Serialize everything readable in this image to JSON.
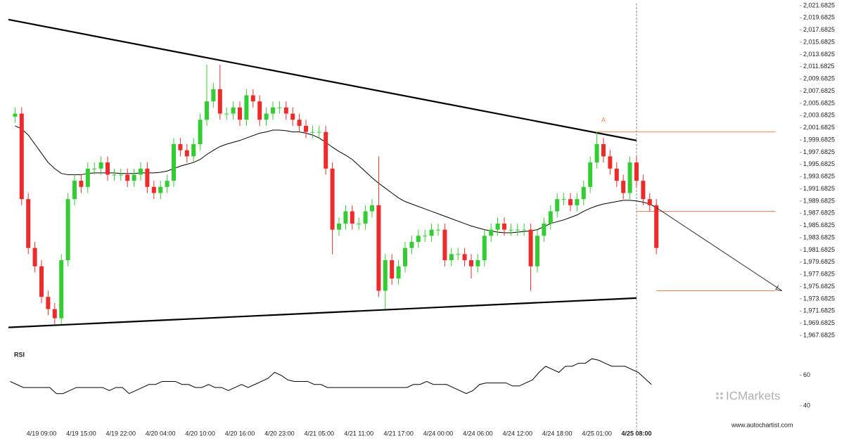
{
  "chart_data": [
    {
      "type": "candlestick",
      "categories": [
        null,
        null,
        null,
        null,
        "4/19 09:00",
        null,
        null,
        null,
        null,
        null,
        "4/19 15:00",
        null,
        null,
        null,
        null,
        null,
        "4/19 22:00",
        null,
        null,
        null,
        null,
        null,
        "4/20 04:00",
        null,
        null,
        null,
        null,
        null,
        "4/20 10:00",
        null,
        null,
        null,
        null,
        null,
        "4/20 16:00",
        null,
        null,
        null,
        null,
        null,
        "4/20 23:00",
        null,
        null,
        null,
        null,
        null,
        "4/21 05:00",
        null,
        null,
        null,
        null,
        null,
        "4/21 11:00",
        null,
        null,
        null,
        null,
        null,
        "4/21 17:00",
        null,
        null,
        null,
        null,
        null,
        "4/24 00:00",
        null,
        null,
        null,
        null,
        null,
        "4/24 06:00",
        null,
        null,
        null,
        null,
        null,
        "4/24 12:00",
        null,
        null,
        null,
        null,
        null,
        "4/24 18:00",
        null,
        null,
        null,
        null,
        null,
        "4/25 01:00",
        null,
        null,
        null,
        null,
        null,
        "4/25 08:00",
        null,
        null,
        null
      ],
      "open": [
        2003.5,
        2004,
        1990,
        1982,
        1979,
        1974,
        1972,
        1970.5,
        1980,
        1990,
        1993,
        1992,
        1995,
        1995,
        1996,
        1994,
        1994,
        1994,
        1993,
        1994,
        1995,
        1992,
        1991,
        1992,
        1993,
        1999,
        1998,
        1997,
        1999,
        2003,
        2006,
        2008,
        2004,
        2004,
        2005,
        2003,
        2007,
        2006,
        2003,
        2004,
        2005,
        2005,
        2004,
        2003,
        2002,
        2001,
        2001,
        2001,
        1995,
        1985,
        1986,
        1988,
        1986,
        1986,
        1988,
        1989,
        1975,
        1980,
        1977,
        1979,
        1982,
        1983,
        1984,
        1984,
        1985,
        1985,
        1980,
        1981,
        1981,
        1980,
        1979,
        1980,
        1984,
        1985,
        1986,
        1985,
        1985,
        1985,
        1985,
        1979,
        1984,
        1986,
        1988,
        1990,
        1990,
        1989,
        1990,
        1992,
        1996,
        1999,
        1997,
        1995,
        1993,
        1991,
        1996,
        1993,
        1990,
        1989
      ],
      "high": [
        2005,
        2005,
        1991,
        1983,
        1980,
        1975,
        1973,
        1981,
        1991,
        1994,
        1994,
        1996,
        1996,
        1997,
        1997,
        1995,
        1995,
        1995,
        1995,
        1996,
        1996,
        1993,
        1993,
        1994,
        2000,
        2000,
        1999,
        2000,
        2004,
        2012,
        2009,
        2012,
        2005,
        2006,
        2006,
        2008,
        2008,
        2007,
        2005,
        2006,
        2006,
        2006,
        2005,
        2004,
        2003,
        2002,
        2002,
        2002,
        1996,
        1987,
        1989,
        1989,
        1987,
        1989,
        1990,
        1997,
        1981,
        1981,
        1980,
        1983,
        1984,
        1985,
        1985,
        1986,
        1986,
        1986,
        1982,
        1982,
        1982,
        1981,
        1981,
        1985,
        1986,
        1987,
        1987,
        1986,
        1986,
        1986,
        1986,
        1985,
        1987,
        1989,
        1991,
        1991,
        1991,
        1991,
        1993,
        1997,
        2001,
        2000,
        1998,
        1996,
        1994,
        1997,
        1997,
        1994,
        1991,
        1990
      ],
      "low": [
        2002.5,
        1989,
        1981,
        1978,
        1973,
        1971,
        1969.5,
        1969.5,
        1979,
        1989,
        1991,
        1991,
        1994,
        1994,
        1993,
        1993,
        1993,
        1992,
        1992,
        1993,
        1991,
        1990,
        1990,
        1991,
        1992,
        1997,
        1996,
        1996,
        1998,
        2002,
        2005,
        2003,
        2003,
        2003,
        2002,
        2002,
        2005,
        2002,
        2002,
        2003,
        2004,
        2003,
        2002,
        2001,
        2000,
        2000,
        2000,
        1994,
        1981,
        1984,
        1985,
        1985,
        1985,
        1985,
        1987,
        1974,
        1972,
        1976,
        1976,
        1978,
        1981,
        1982,
        1983,
        1983,
        1984,
        1979,
        1979,
        1980,
        1979,
        1977,
        1978,
        1979,
        1983,
        1984,
        1984,
        1984,
        1984,
        1984,
        1975,
        1978,
        1983,
        1985,
        1987,
        1989,
        1988,
        1988,
        1989,
        1991,
        1995,
        1996,
        1994,
        1992,
        1990,
        1990,
        1992,
        1989,
        1988,
        1981
      ],
      "close": [
        2004,
        1990,
        1982,
        1979,
        1974,
        1972,
        1970.5,
        1980,
        1990,
        1993,
        1992,
        1995,
        1995,
        1996,
        1994,
        1994,
        1994,
        1993,
        1994,
        1995,
        1992,
        1991,
        1992,
        1993,
        1999,
        1998,
        1997,
        1999,
        2003,
        2006,
        2008,
        2004,
        2004,
        2005,
        2003,
        2007,
        2006,
        2003,
        2004,
        2005,
        2005,
        2004,
        2003,
        2002,
        2001,
        2001,
        2001,
        1995,
        1985,
        1986,
        1988,
        1986,
        1986,
        1988,
        1989,
        1975,
        1980,
        1977,
        1979,
        1982,
        1983,
        1984,
        1984,
        1985,
        1985,
        1980,
        1981,
        1981,
        1980,
        1979,
        1980,
        1984,
        1985,
        1986,
        1985,
        1985,
        1985,
        1985,
        1979,
        1984,
        1986,
        1988,
        1990,
        1990,
        1989,
        1990,
        1992,
        1996,
        1999,
        1997,
        1995,
        1993,
        1991,
        1996,
        1993,
        1990,
        1989,
        1982
      ],
      "up_color": "#33cc33",
      "down_color": "#ee2b2b",
      "moving_average": {
        "color": "#000000",
        "values": [
          2002,
          2001.5,
          2000.5,
          1999,
          1997.5,
          1996,
          1995,
          1994.2,
          1994,
          1994,
          1994,
          1994.2,
          1994.3,
          1994.3,
          1994.3,
          1994.3,
          1994.2,
          1994.2,
          1994.2,
          1994.3,
          1994.3,
          1994.3,
          1994.4,
          1994.6,
          1995,
          1995.4,
          1995.7,
          1996,
          1996.5,
          1997.3,
          1998,
          1998.6,
          1999,
          1999.3,
          1999.6,
          2000,
          2000.4,
          2000.8,
          2001,
          2001.3,
          2001.3,
          2001.2,
          2001,
          2001,
          2000.8,
          2000.5,
          2000,
          1999.3,
          1998.5,
          1997.8,
          1997.2,
          1996.5,
          1995.5,
          1994.5,
          1993.5,
          1992.6,
          1991.8,
          1991,
          1990.2,
          1989.6,
          1989.2,
          1988.8,
          1988.4,
          1988,
          1987.6,
          1987.2,
          1986.8,
          1986.4,
          1986,
          1985.6,
          1985.3,
          1985,
          1984.8,
          1984.6,
          1984.5,
          1984.5,
          1984.6,
          1984.7,
          1984.8,
          1985,
          1985.5,
          1986,
          1986.3,
          1986.6,
          1987,
          1987.4,
          1988,
          1988.5,
          1988.9,
          1989.2,
          1989.4,
          1989.6,
          1989.8,
          1989.8,
          1989.7,
          1989.5,
          1989.2,
          1988.6
        ]
      },
      "ylim": [
        1966.19,
        2022.6
      ],
      "yticks": [
        {
          "value": 2021.6825,
          "label": "2,021.6825"
        },
        {
          "value": 2019.6825,
          "label": "2,019.6825"
        },
        {
          "value": 2017.6825,
          "label": "2,017.6825"
        },
        {
          "value": 2015.6825,
          "label": "2,015.6825"
        },
        {
          "value": 2013.6825,
          "label": "2,013.6825"
        },
        {
          "value": 2011.6825,
          "label": "2,011.6825"
        },
        {
          "value": 2009.6825,
          "label": "2,009.6825"
        },
        {
          "value": 2007.6825,
          "label": "2,007.6825"
        },
        {
          "value": 2005.6825,
          "label": "2,005.6825"
        },
        {
          "value": 2003.6825,
          "label": "2,003.6825"
        },
        {
          "value": 2001.6825,
          "label": "2,001.6825"
        },
        {
          "value": 1999.6825,
          "label": "1,999.6825"
        },
        {
          "value": 1997.6825,
          "label": "1,997.6825"
        },
        {
          "value": 1995.6825,
          "label": "1,995.6825"
        },
        {
          "value": 1993.6825,
          "label": "1,993.6825"
        },
        {
          "value": 1991.6825,
          "label": "1,991.6825"
        },
        {
          "value": 1989.6825,
          "label": "1,989.6825"
        },
        {
          "value": 1987.6825,
          "label": "1,987.6825"
        },
        {
          "value": 1985.6825,
          "label": "1,985.6825"
        },
        {
          "value": 1983.6825,
          "label": "1,983.6825"
        },
        {
          "value": 1981.6825,
          "label": "1,981.6825"
        },
        {
          "value": 1979.6825,
          "label": "1,979.6825"
        },
        {
          "value": 1977.6825,
          "label": "1,977.6825"
        },
        {
          "value": 1975.6825,
          "label": "1,975.6825"
        },
        {
          "value": 1973.6825,
          "label": "1,973.6825"
        },
        {
          "value": 1971.6825,
          "label": "1,971.6825"
        },
        {
          "value": 1969.6825,
          "label": "1,969.6825"
        },
        {
          "value": 1967.6825,
          "label": "1,967.6825"
        }
      ],
      "current_index": 94,
      "trendlines": [
        {
          "start_index": -1,
          "start_value": 2019.4,
          "end_index": 94,
          "end_value": 1999.6,
          "color": "#000000"
        },
        {
          "start_index": -1,
          "start_value": 1969.0,
          "end_index": 94,
          "end_value": 1973.8,
          "color": "#000000"
        }
      ],
      "levels": [
        {
          "value": 2001.0,
          "start_index": 88,
          "end_index": 115,
          "color": "#e8834a"
        },
        {
          "value": 1988.0,
          "start_index": 94,
          "end_index": 115,
          "color": "#e8834a"
        },
        {
          "value": 1975.0,
          "start_index": 97,
          "end_index": 115,
          "color": "#e8834a"
        }
      ],
      "arrow": {
        "start_index": 97,
        "start_value": 1988.6,
        "end_index": 116,
        "end_value": 1975.0,
        "color": "#333333"
      },
      "annotation": {
        "label": "A",
        "index": 89,
        "value": 2002.2,
        "color": "#e8834a"
      }
    },
    {
      "type": "line",
      "title": "RSI",
      "color": "#000000",
      "values": [
        56,
        54,
        52,
        52,
        52,
        52,
        52,
        48,
        48,
        50,
        52,
        52,
        52,
        52,
        52,
        50,
        52,
        52,
        48,
        50,
        52,
        54,
        54,
        56,
        56,
        56,
        54,
        54,
        52,
        52,
        54,
        52,
        52,
        50,
        52,
        54,
        52,
        54,
        56,
        58,
        62,
        60,
        57,
        56,
        56,
        56,
        54,
        54,
        52,
        52,
        52,
        52,
        52,
        52,
        52,
        52,
        52,
        52,
        52,
        52,
        52,
        54,
        54,
        56,
        54,
        54,
        54,
        52,
        50,
        48,
        50,
        54,
        55,
        55,
        55,
        55,
        53,
        53,
        55,
        57,
        62,
        66,
        64,
        62,
        66,
        66,
        68,
        68,
        71,
        70,
        68,
        66,
        66,
        66,
        64,
        62,
        58,
        54
      ],
      "ylim": [
        27,
        78
      ],
      "yticks": [
        40,
        60
      ]
    }
  ],
  "brand": "ICMarkets",
  "footer": "www.autochartist.com"
}
